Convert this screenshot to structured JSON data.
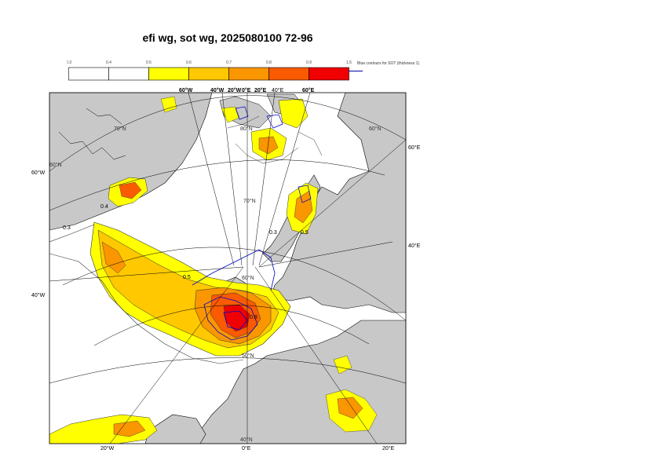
{
  "title": "efi wg, sot wg, 2025080100 72-96",
  "colorbar": {
    "ticks": [
      "0.3",
      "0.4",
      "0.5",
      "0.6",
      "0.7",
      "0.8",
      "0.9",
      "1.5"
    ],
    "bins": [
      {
        "color": "#ffffff"
      },
      {
        "color": "#ffffff"
      },
      {
        "color": "#ffff00"
      },
      {
        "color": "#ffc800"
      },
      {
        "color": "#fa9600"
      },
      {
        "color": "#fa5a00"
      },
      {
        "color": "#f00000"
      }
    ]
  },
  "legend_note": "Blue contours for SOT (thickness 1)",
  "colors": {
    "land": "#c8c8c8",
    "ocean": "#ffffff",
    "sot_contour": "#0000cc",
    "efi_contour": "#333333"
  },
  "graticule_labels": {
    "top": [
      "60°W",
      "40°W",
      "20°W",
      "0°E",
      "20°E",
      "40°E",
      "60°E"
    ],
    "left": [
      "60°W",
      "40°W"
    ],
    "right": [
      "60°E",
      "40°E"
    ],
    "bottom": [
      "20°W",
      "0°E",
      "20°E"
    ],
    "interior": [
      "70°N",
      "70°N",
      "60°N",
      "60°N",
      "50°N",
      "40°N",
      "80°N",
      "60°N"
    ]
  },
  "contour_labels": [
    "0.3",
    "0.4",
    "0.5",
    "0.8",
    "0.3",
    "0.5"
  ]
}
